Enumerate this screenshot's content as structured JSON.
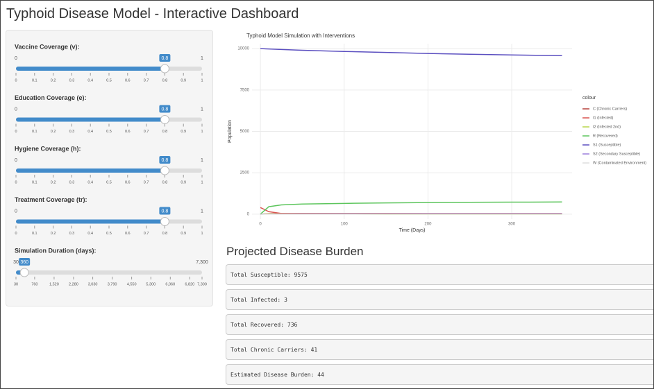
{
  "header": {
    "title": "Typhoid Disease Model - Interactive Dashboard"
  },
  "sidebar": {
    "sliders": [
      {
        "label": "Vaccine Coverage (v):",
        "min": 0,
        "max": 1,
        "value": 0.8,
        "ticks": [
          0,
          0.1,
          0.2,
          0.3,
          0.4,
          0.5,
          0.6,
          0.7,
          0.8,
          0.9,
          1
        ]
      },
      {
        "label": "Education Coverage (e):",
        "min": 0,
        "max": 1,
        "value": 0.8,
        "ticks": [
          0,
          0.1,
          0.2,
          0.3,
          0.4,
          0.5,
          0.6,
          0.7,
          0.8,
          0.9,
          1
        ]
      },
      {
        "label": "Hygiene Coverage (h):",
        "min": 0,
        "max": 1,
        "value": 0.8,
        "ticks": [
          0,
          0.1,
          0.2,
          0.3,
          0.4,
          0.5,
          0.6,
          0.7,
          0.8,
          0.9,
          1
        ]
      },
      {
        "label": "Treatment Coverage (tr):",
        "min": 0,
        "max": 1,
        "value": 0.8,
        "ticks": [
          0,
          0.1,
          0.2,
          0.3,
          0.4,
          0.5,
          0.6,
          0.7,
          0.8,
          0.9,
          1
        ]
      },
      {
        "label": "Simulation Duration (days):",
        "min": 30,
        "max": {
          "value": 7300,
          "label": "7,300"
        },
        "value": 360,
        "ticks": [
          30,
          760,
          {
            "value": 1520,
            "label": "1,520"
          },
          {
            "value": 2280,
            "label": "2,280"
          },
          {
            "value": 3030,
            "label": "3,030"
          },
          {
            "value": 3790,
            "label": "3,790"
          },
          {
            "value": 4550,
            "label": "4,550"
          },
          {
            "value": 5300,
            "label": "5,300"
          },
          {
            "value": 6060,
            "label": "6,060"
          },
          {
            "value": 6820,
            "label": "6,820"
          },
          {
            "value": 7300,
            "label": "7,300"
          }
        ]
      }
    ]
  },
  "chart_data": {
    "type": "line",
    "title": "Typhoid Model Simulation with Interventions",
    "x_label": "Time (Days)",
    "y_label": "Population",
    "legend_title": "colour",
    "x": [
      0,
      10,
      25,
      50,
      100,
      150,
      200,
      250,
      300,
      360
    ],
    "series": [
      {
        "name": "C (Chronic Carriers)",
        "color": "#b5413a",
        "values": [
          0,
          30,
          40,
          42,
          42,
          41,
          41,
          41,
          41,
          41
        ]
      },
      {
        "name": "I1 (Infected)",
        "color": "#d9534f",
        "values": [
          400,
          150,
          40,
          10,
          5,
          4,
          3,
          3,
          3,
          3
        ]
      },
      {
        "name": "I2 (Infected 2nd)",
        "color": "#b8d64a",
        "values": [
          0,
          20,
          10,
          5,
          2,
          1,
          1,
          1,
          1,
          1
        ]
      },
      {
        "name": "R (Recovered)",
        "color": "#5cc55c",
        "values": [
          0,
          450,
          560,
          610,
          650,
          680,
          700,
          715,
          725,
          736
        ]
      },
      {
        "name": "S1 (Susceptible)",
        "color": "#5b4fc0",
        "values": [
          10000,
          9980,
          9950,
          9900,
          9830,
          9770,
          9710,
          9660,
          9620,
          9575
        ]
      },
      {
        "name": "S2 (Secondary Susceptible)",
        "color": "#9b7fdc",
        "values": [
          0,
          5,
          10,
          15,
          20,
          22,
          24,
          25,
          26,
          27
        ]
      },
      {
        "name": "W (Contaminated Environment)",
        "color": "#dddddd",
        "values": [
          0,
          5,
          5,
          5,
          4,
          4,
          4,
          4,
          4,
          4
        ]
      }
    ],
    "xlim": [
      -10,
      372
    ],
    "ylim": [
      -300,
      10300
    ],
    "xticks": [
      0,
      100,
      200,
      300
    ],
    "yticks": [
      0,
      2500,
      5000,
      7500,
      10000
    ],
    "grid": true
  },
  "burden": {
    "title": "Projected Disease Burden",
    "items": [
      "Total Susceptible: 9575",
      "Total Infected: 3",
      "Total Recovered: 736",
      "Total Chronic Carriers: 41",
      "Estimated Disease Burden: 44"
    ]
  }
}
